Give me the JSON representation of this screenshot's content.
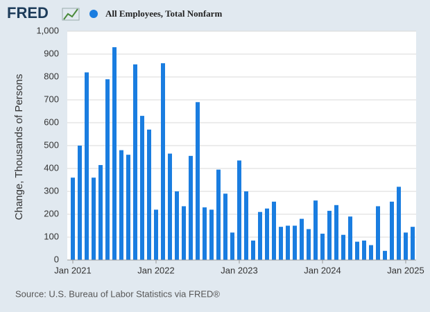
{
  "logo": "FRED",
  "chart_data": {
    "type": "bar",
    "series": [
      {
        "name": "All Employees, Total Nonfarm",
        "color": "#1a7de0",
        "values": [
          360,
          500,
          820,
          360,
          415,
          790,
          930,
          480,
          460,
          855,
          630,
          570,
          220,
          860,
          465,
          300,
          235,
          455,
          690,
          230,
          220,
          395,
          290,
          120,
          435,
          300,
          85,
          210,
          225,
          255,
          145,
          150,
          150,
          180,
          135,
          260,
          115,
          215,
          240,
          110,
          190,
          80,
          85,
          65,
          235,
          40,
          255,
          320,
          120,
          145
        ]
      }
    ],
    "x": [
      "2021-01",
      "2021-02",
      "2021-03",
      "2021-04",
      "2021-05",
      "2021-06",
      "2021-07",
      "2021-08",
      "2021-09",
      "2021-10",
      "2021-11",
      "2021-12",
      "2022-01",
      "2022-02",
      "2022-03",
      "2022-04",
      "2022-05",
      "2022-06",
      "2022-07",
      "2022-08",
      "2022-09",
      "2022-10",
      "2022-11",
      "2022-12",
      "2023-01",
      "2023-02",
      "2023-03",
      "2023-04",
      "2023-05",
      "2023-06",
      "2023-07",
      "2023-08",
      "2023-09",
      "2023-10",
      "2023-11",
      "2023-12",
      "2024-01",
      "2024-02",
      "2024-03",
      "2024-04",
      "2024-05",
      "2024-06",
      "2024-07",
      "2024-08",
      "2024-09",
      "2024-10",
      "2024-11",
      "2024-12",
      "2025-01",
      "2025-02"
    ],
    "xticks": [
      {
        "value": "2021-01",
        "label": "Jan 2021"
      },
      {
        "value": "2022-01",
        "label": "Jan 2022"
      },
      {
        "value": "2023-01",
        "label": "Jan 2023"
      },
      {
        "value": "2024-01",
        "label": "Jan 2024"
      },
      {
        "value": "2025-01",
        "label": "Jan 2025"
      }
    ],
    "y_label": "Change, Thousands of Persons",
    "ylim": [
      0,
      1000
    ],
    "yticks": [
      0,
      100,
      200,
      300,
      400,
      500,
      600,
      700,
      800,
      900,
      {
        "value": 1000,
        "label": "1,000"
      }
    ],
    "grid": true,
    "source": "Source: U.S. Bureau of Labor Statistics via FRED®"
  }
}
